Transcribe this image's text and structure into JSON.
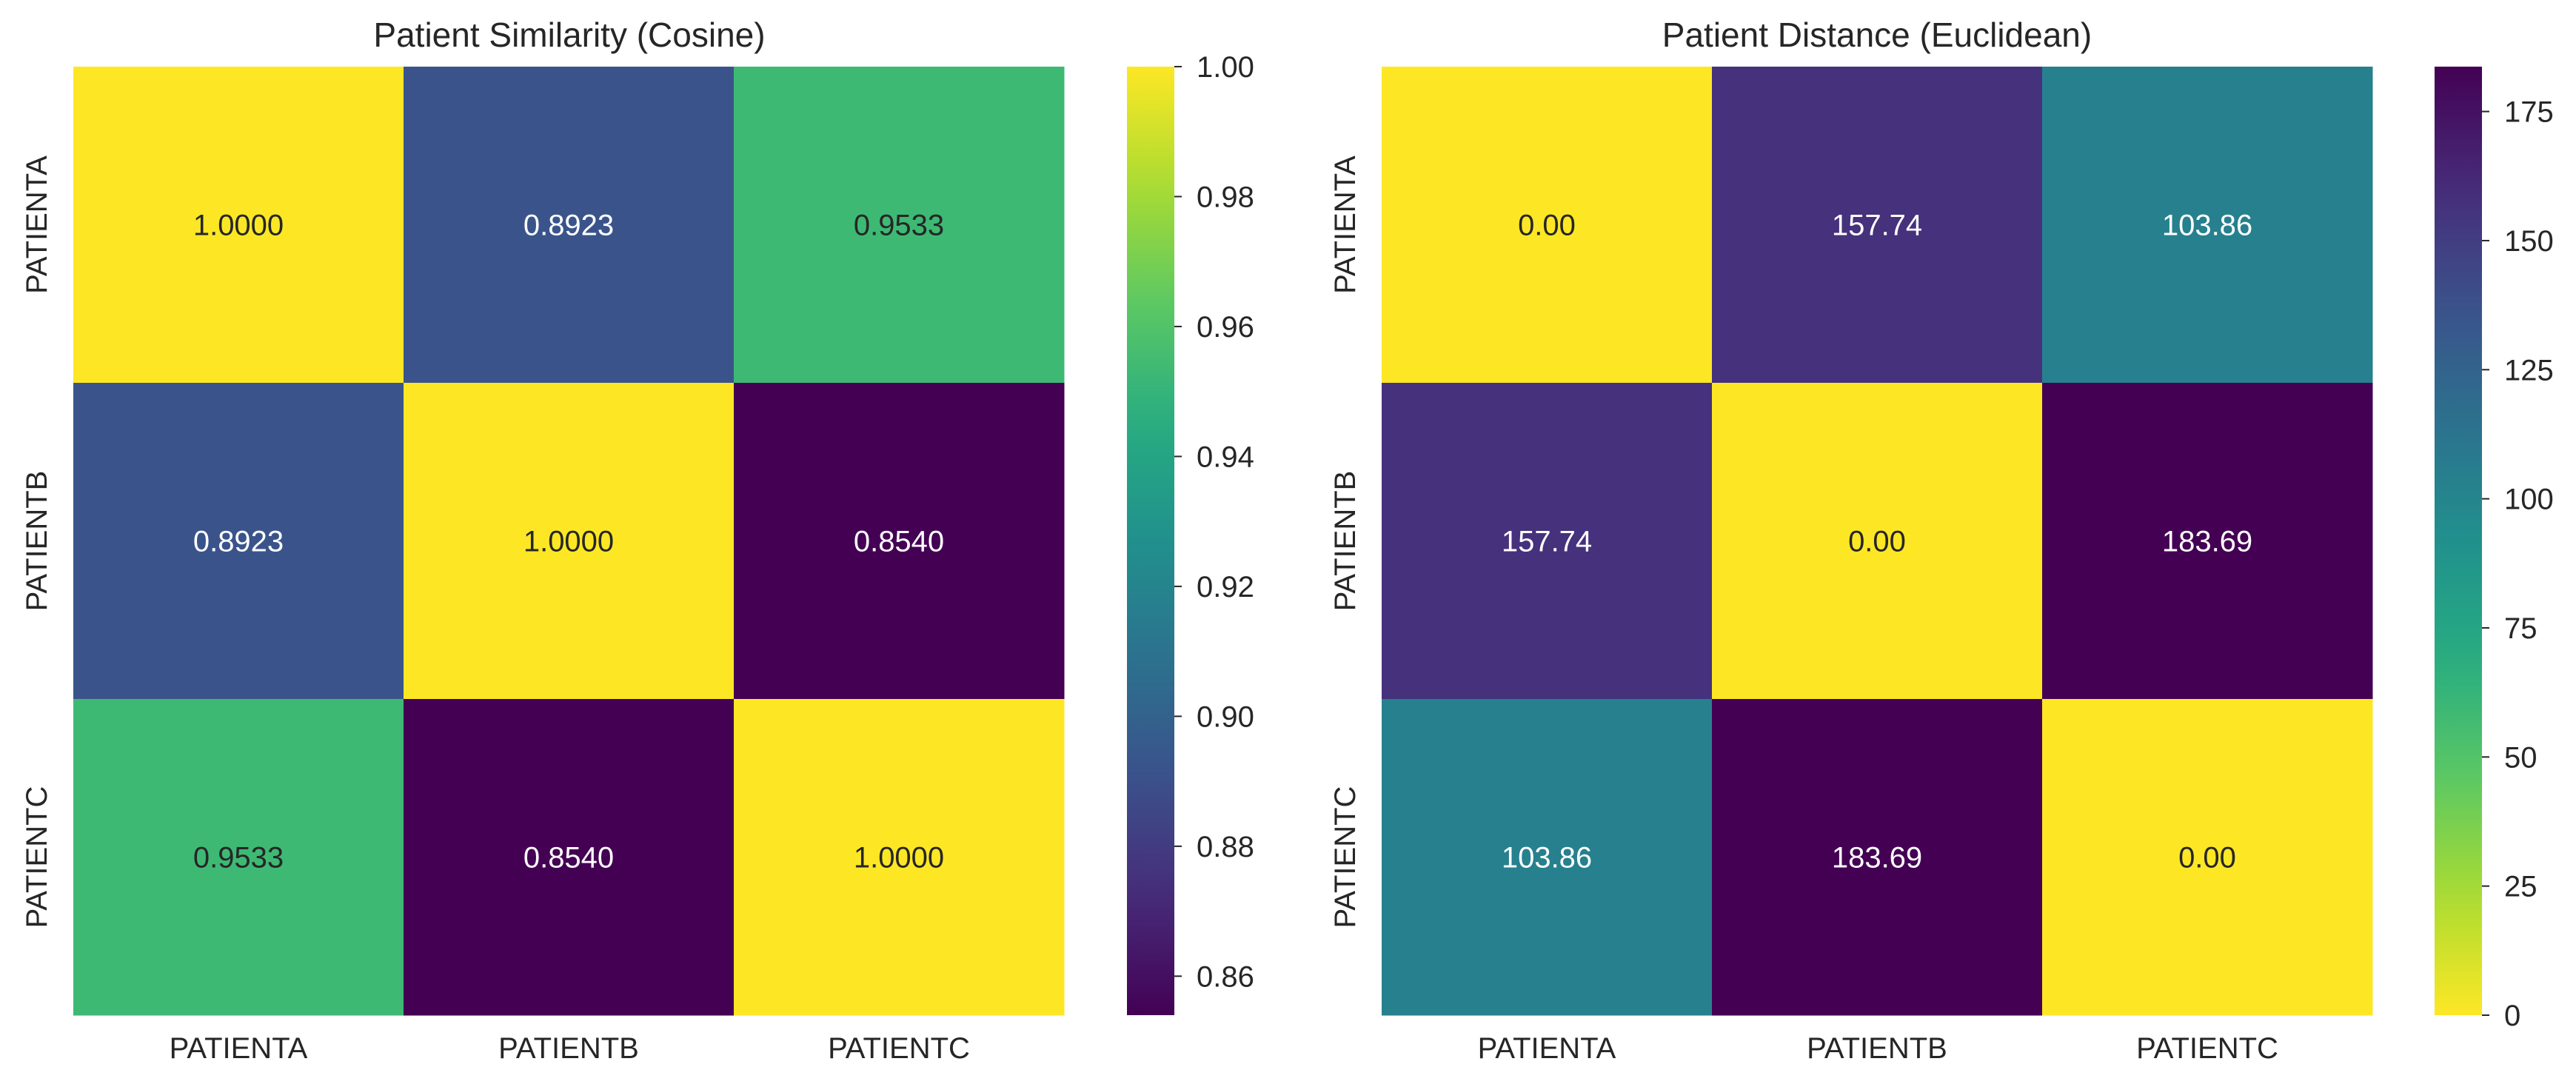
{
  "chart_data": [
    {
      "type": "heatmap",
      "title": "Patient Similarity (Cosine)",
      "x_labels": [
        "PATIENTA",
        "PATIENTB",
        "PATIENTC"
      ],
      "y_labels": [
        "PATIENTA",
        "PATIENTB",
        "PATIENTC"
      ],
      "values": [
        [
          1.0,
          0.8923,
          0.9533
        ],
        [
          0.8923,
          1.0,
          0.854
        ],
        [
          0.9533,
          0.854,
          1.0
        ]
      ],
      "cell_labels": [
        [
          "1.0000",
          "0.8923",
          "0.9533"
        ],
        [
          "0.8923",
          "1.0000",
          "0.8540"
        ],
        [
          "0.9533",
          "0.8540",
          "1.0000"
        ]
      ],
      "colormap": "viridis",
      "reversed_colormap": false,
      "color_range": [
        0.854,
        1.0
      ],
      "colorbar_ticks": [
        0.86,
        0.88,
        0.9,
        0.92,
        0.94,
        0.96,
        0.98,
        1.0
      ],
      "colorbar_tick_labels": [
        "0.86",
        "0.88",
        "0.90",
        "0.92",
        "0.94",
        "0.96",
        "0.98",
        "1.00"
      ]
    },
    {
      "type": "heatmap",
      "title": "Patient Distance (Euclidean)",
      "x_labels": [
        "PATIENTA",
        "PATIENTB",
        "PATIENTC"
      ],
      "y_labels": [
        "PATIENTA",
        "PATIENTB",
        "PATIENTC"
      ],
      "values": [
        [
          0.0,
          157.74,
          103.86
        ],
        [
          157.74,
          0.0,
          183.69
        ],
        [
          103.86,
          183.69,
          0.0
        ]
      ],
      "cell_labels": [
        [
          "0.00",
          "157.74",
          "103.86"
        ],
        [
          "157.74",
          "0.00",
          "183.69"
        ],
        [
          "103.86",
          "183.69",
          "0.00"
        ]
      ],
      "colormap": "viridis_r",
      "reversed_colormap": true,
      "color_range": [
        0,
        183.69
      ],
      "colorbar_ticks": [
        0,
        25,
        50,
        75,
        100,
        125,
        150,
        175
      ],
      "colorbar_tick_labels": [
        "0",
        "25",
        "50",
        "75",
        "100",
        "125",
        "150",
        "175"
      ]
    }
  ]
}
